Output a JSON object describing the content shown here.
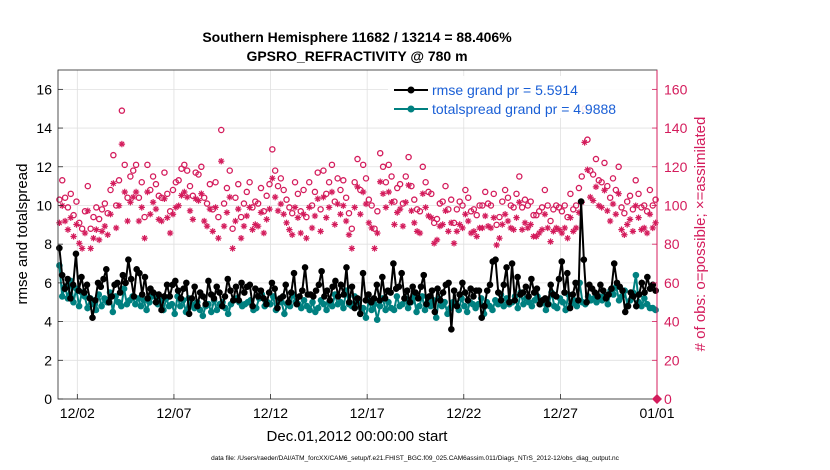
{
  "figure": {
    "title_line1": "Southern Hemisphere 11682 / 13214 = 88.406%",
    "title_line2": "GPSRO_REFRACTIVITY @ 780 m",
    "footer": "data file: /Users/raeder/DAI/ATM_forcXX/CAM6_setup/f.e21.FHIST_BGC.f09_025.CAM6assim.011/Diags_NTrS_2012-12/obs_diag_output.nc"
  },
  "colors": {
    "rmse": "#000000",
    "spread": "#008080",
    "obs": "#d41c5c",
    "legend_text": "#1a5fd6"
  },
  "chart_data": {
    "type": "line",
    "xlabel": "Dec.01,2012 00:00:00 start",
    "ylabel_left": "rmse and totalspread",
    "ylabel_right": "# of obs: o=possible; ×=assimilated",
    "xlim": [
      0,
      31
    ],
    "ylim_left": [
      0,
      17
    ],
    "ylim_right": [
      0,
      170
    ],
    "x_ticks": [
      {
        "value": 1,
        "label": "12/02"
      },
      {
        "value": 6,
        "label": "12/07"
      },
      {
        "value": 11,
        "label": "12/12"
      },
      {
        "value": 16,
        "label": "12/17"
      },
      {
        "value": 21,
        "label": "12/22"
      },
      {
        "value": 26,
        "label": "12/27"
      },
      {
        "value": 31,
        "label": "01/01"
      }
    ],
    "y_ticks_left": [
      0,
      2,
      4,
      6,
      8,
      10,
      12,
      14,
      16
    ],
    "y_ticks_right": [
      0,
      20,
      40,
      60,
      80,
      100,
      120,
      140,
      160
    ],
    "grid": true,
    "legend_position": "top-right",
    "series": [
      {
        "name": "rmse grand pr = 5.5914",
        "values": [
          7.8,
          6.4,
          5.7,
          6.2,
          5.2,
          5.9,
          7.5,
          5.6,
          6.3,
          5.5,
          5.9,
          5.2,
          4.2,
          5.1,
          6.0,
          5.8,
          6.2,
          6.7,
          5.0,
          5.3,
          5.9,
          6.0,
          5.5,
          6.4,
          6.0,
          7.2,
          6.2,
          5.3,
          6.7,
          6.5,
          5.4,
          6.3,
          5.2,
          5.7,
          5.5,
          5.0,
          5.4,
          4.6,
          5.3,
          5.9,
          5.3,
          5.9,
          6.1,
          5.6,
          5.2,
          5.7,
          6.0,
          4.4,
          5.2,
          5.8,
          4.8,
          5.5,
          5.3,
          4.9,
          6.1,
          5.4,
          5.2,
          5.8,
          5.5,
          4.8,
          5.3,
          6.2,
          5.6,
          5.1,
          5.8,
          5.1,
          6.0,
          5.5,
          5.8,
          5.9,
          4.8,
          5.7,
          5.3,
          5.6,
          5.2,
          4.9,
          5.5,
          6.0,
          5.7,
          4.7,
          5.2,
          5.3,
          5.9,
          5.0,
          5.5,
          6.5,
          4.9,
          5.3,
          5.6,
          6.8,
          5.4,
          5.4,
          5.3,
          5.6,
          5.9,
          6.6,
          5.3,
          5.6,
          5.1,
          5.8,
          6.1,
          5.3,
          5.9,
          5.4,
          6.8,
          5.0,
          5.8,
          4.7,
          5.2,
          4.4,
          6.5,
          5.1,
          5.4,
          5.0,
          5.2,
          5.9,
          5.1,
          6.3,
          5.2,
          5.6,
          5.5,
          7.0,
          5.7,
          5.8,
          6.5,
          5.2,
          5.6,
          5.0,
          5.8,
          5.5,
          5.2,
          5.8,
          6.4,
          4.9,
          5.3,
          5.6,
          4.5,
          5.7,
          5.1,
          5.5,
          5.9,
          6.0,
          3.6,
          5.6,
          4.8,
          5.4,
          6.0,
          5.5,
          5.1,
          5.7,
          5.3,
          5.6,
          5.6,
          4.2,
          4.8,
          5.6,
          5.9,
          7.1,
          7.2,
          5.5,
          5.1,
          5.9,
          6.8,
          5.0,
          7.0,
          5.1,
          6.3,
          5.4,
          5.5,
          5.8,
          5.3,
          6.2,
          5.5,
          5.7,
          4.9,
          5.1,
          5.2,
          4.9,
          5.9,
          5.4,
          5.3,
          6.2,
          7.1,
          5.5,
          6.5,
          4.7,
          5.4,
          6.0,
          5.1,
          10.2,
          7.2,
          5.0,
          5.9,
          5.7,
          5.5,
          5.3,
          5.9,
          5.6,
          5.2,
          5.4,
          5.7,
          7.0,
          6.0,
          5.8,
          5.6,
          4.5,
          4.8,
          5.5,
          5.3,
          4.8,
          5.4,
          6.0,
          5.5,
          6.3,
          5.7,
          5.9,
          5.6
        ]
      },
      {
        "name": "totalspread grand pr = 4.9888",
        "values": [
          6.9,
          5.3,
          5.8,
          5.2,
          6.1,
          5.0,
          5.7,
          4.8,
          5.5,
          5.3,
          4.7,
          5.2,
          4.9,
          4.6,
          5.4,
          4.8,
          5.2,
          5.0,
          5.5,
          4.5,
          5.3,
          5.0,
          4.8,
          5.7,
          4.9,
          5.1,
          5.3,
          4.9,
          5.2,
          4.8,
          5.1,
          4.6,
          5.0,
          5.3,
          5.4,
          4.9,
          5.1,
          4.6,
          5.2,
          4.8,
          4.9,
          4.4,
          5.3,
          4.8,
          5.1,
          4.5,
          5.2,
          4.9,
          4.7,
          5.0,
          4.6,
          4.3,
          4.8,
          4.9,
          4.5,
          5.1,
          4.6,
          4.9,
          5.0,
          4.7,
          4.4,
          4.9,
          5.1,
          5.2,
          5.0,
          4.8,
          4.9,
          5.0,
          5.1,
          4.6,
          4.7,
          5.2,
          5.4,
          4.8,
          5.0,
          4.9,
          5.3,
          4.6,
          5.1,
          5.0,
          4.4,
          4.9,
          4.8,
          5.4,
          5.0,
          4.9,
          4.7,
          5.1,
          4.8,
          4.6,
          5.0,
          4.5,
          4.7,
          5.1,
          4.9,
          4.6,
          5.0,
          4.8,
          5.4,
          4.9,
          5.0,
          4.7,
          5.6,
          4.9,
          4.8,
          5.3,
          5.0,
          4.4,
          4.7,
          4.2,
          5.1,
          4.6,
          4.9,
          4.1,
          4.8,
          5.2,
          4.6,
          5.0,
          4.7,
          4.6,
          5.3,
          4.8,
          4.9,
          5.2,
          4.7,
          5.0,
          5.3,
          4.5,
          4.8,
          5.3,
          4.6,
          5.0,
          4.8,
          5.1,
          4.2,
          5.2,
          4.8,
          5.0,
          4.4,
          4.7,
          5.0,
          4.9,
          4.6,
          5.2,
          4.8,
          4.5,
          5.0,
          4.9,
          4.7,
          4.9,
          5.2,
          4.4,
          5.0,
          4.8,
          4.6,
          5.1,
          4.9,
          5.4,
          4.8,
          5.2,
          4.9,
          5.0,
          5.3,
          4.7,
          5.5,
          4.9,
          5.2,
          5.0,
          4.8,
          5.1,
          5.3,
          4.9,
          5.0,
          4.6,
          4.9,
          5.5,
          4.8,
          4.7,
          5.2,
          5.0,
          4.6,
          5.4,
          4.9,
          5.1,
          4.8,
          6.0,
          5.0,
          4.9,
          5.3,
          5.1,
          5.2,
          5.0,
          5.3,
          5.1,
          5.4,
          4.9,
          5.6,
          5.4,
          5.8,
          5.1,
          5.3,
          5.6,
          4.8,
          5.1,
          5.5,
          6.4,
          5.0,
          4.8,
          5.2,
          4.9,
          4.7,
          4.7,
          4.6
        ]
      }
    ],
    "obs_possible": [
      103,
      113,
      104,
      99,
      106,
      95,
      102,
      91,
      88,
      97,
      110,
      88,
      94,
      99,
      93,
      98,
      101,
      96,
      108,
      126,
      100,
      113,
      149,
      121,
      104,
      115,
      118,
      121,
      104,
      112,
      94,
      121,
      108,
      115,
      111,
      105,
      104,
      117,
      106,
      97,
      108,
      112,
      113,
      119,
      121,
      118,
      110,
      105,
      117,
      116,
      120,
      104,
      101,
      111,
      98,
      112,
      94,
      139,
      101,
      109,
      118,
      88,
      104,
      111,
      94,
      101,
      107,
      112,
      99,
      102,
      101,
      109,
      97,
      105,
      111,
      129,
      118,
      110,
      114,
      108,
      103,
      99,
      96,
      112,
      106,
      97,
      108,
      94,
      112,
      100,
      107,
      117,
      98,
      118,
      106,
      112,
      121,
      102,
      114,
      108,
      113,
      104,
      96,
      88,
      112,
      124,
      108,
      121,
      114,
      103,
      100,
      88,
      97,
      127,
      120,
      112,
      121,
      115,
      102,
      109,
      111,
      101,
      115,
      125,
      110,
      103,
      98,
      97,
      120,
      112,
      107,
      106,
      91,
      93,
      101,
      102,
      110,
      98,
      103,
      91,
      98,
      102,
      100,
      108,
      104,
      97,
      98,
      95,
      100,
      100,
      107,
      101,
      100,
      106,
      90,
      94,
      102,
      108,
      104,
      100,
      99,
      106,
      115,
      99,
      103,
      100,
      102,
      95,
      95,
      97,
      99,
      108,
      100,
      92,
      98,
      100,
      99,
      97,
      100,
      94,
      106,
      98,
      100,
      109,
      115,
      150,
      134,
      118,
      116,
      124,
      113,
      112,
      122,
      110,
      104,
      114,
      108,
      120,
      99,
      96,
      102,
      105,
      98,
      113,
      106,
      99,
      100,
      97,
      108,
      100,
      103
    ]
  },
  "legend": {
    "rmse_label": "rmse grand pr = 5.5914",
    "spread_label": "totalspread grand pr = 4.9888"
  }
}
